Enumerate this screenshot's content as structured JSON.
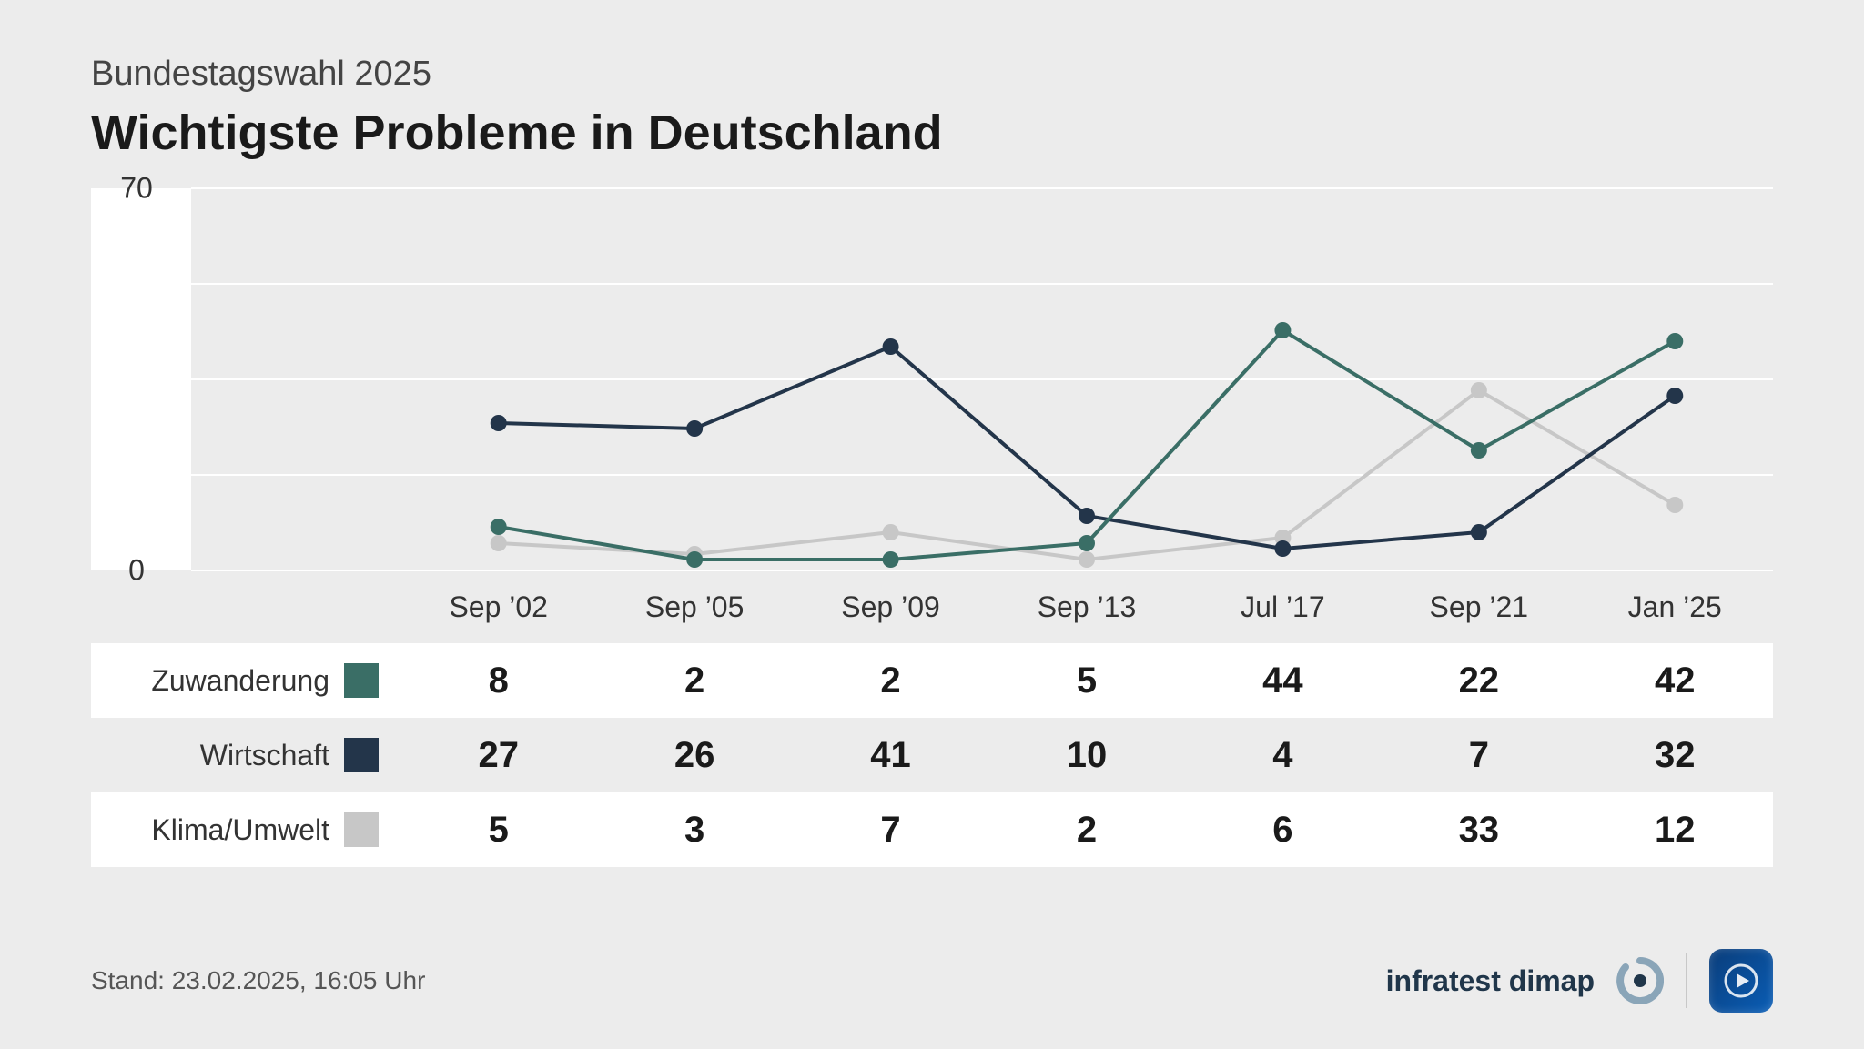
{
  "header": {
    "subtitle": "Bundestagswahl 2025",
    "title": "Wichtigste Probleme in Deutschland"
  },
  "chart": {
    "type": "line",
    "ylim": [
      0,
      70
    ],
    "yticks": [
      0,
      70
    ],
    "gridlines_at": [
      0,
      17.5,
      35,
      52.5,
      70
    ],
    "background_color": "#ececec",
    "plot_bg": "#ececec",
    "axis_bg": "#ffffff",
    "grid_color": "#ffffff",
    "line_width": 4,
    "marker_radius": 9,
    "categories": [
      "Sep ’02",
      "Sep ’05",
      "Sep ’09",
      "Sep ’13",
      "Jul ’17",
      "Sep ’21",
      "Jan ’25"
    ],
    "series": [
      {
        "name": "Zuwanderung",
        "color": "#3a6e66",
        "values": [
          8,
          2,
          2,
          5,
          44,
          22,
          42
        ]
      },
      {
        "name": "Wirtschaft",
        "color": "#23354a",
        "values": [
          27,
          26,
          41,
          10,
          4,
          7,
          32
        ]
      },
      {
        "name": "Klima/Umwelt",
        "color": "#c7c7c7",
        "values": [
          5,
          3,
          7,
          2,
          6,
          33,
          12
        ]
      }
    ],
    "label_fontsize": 32,
    "value_fontsize": 40
  },
  "footer": {
    "stand_label": "Stand:",
    "stand_value": "23.02.2025, 16:05 Uhr",
    "brand": "infratest dimap"
  }
}
